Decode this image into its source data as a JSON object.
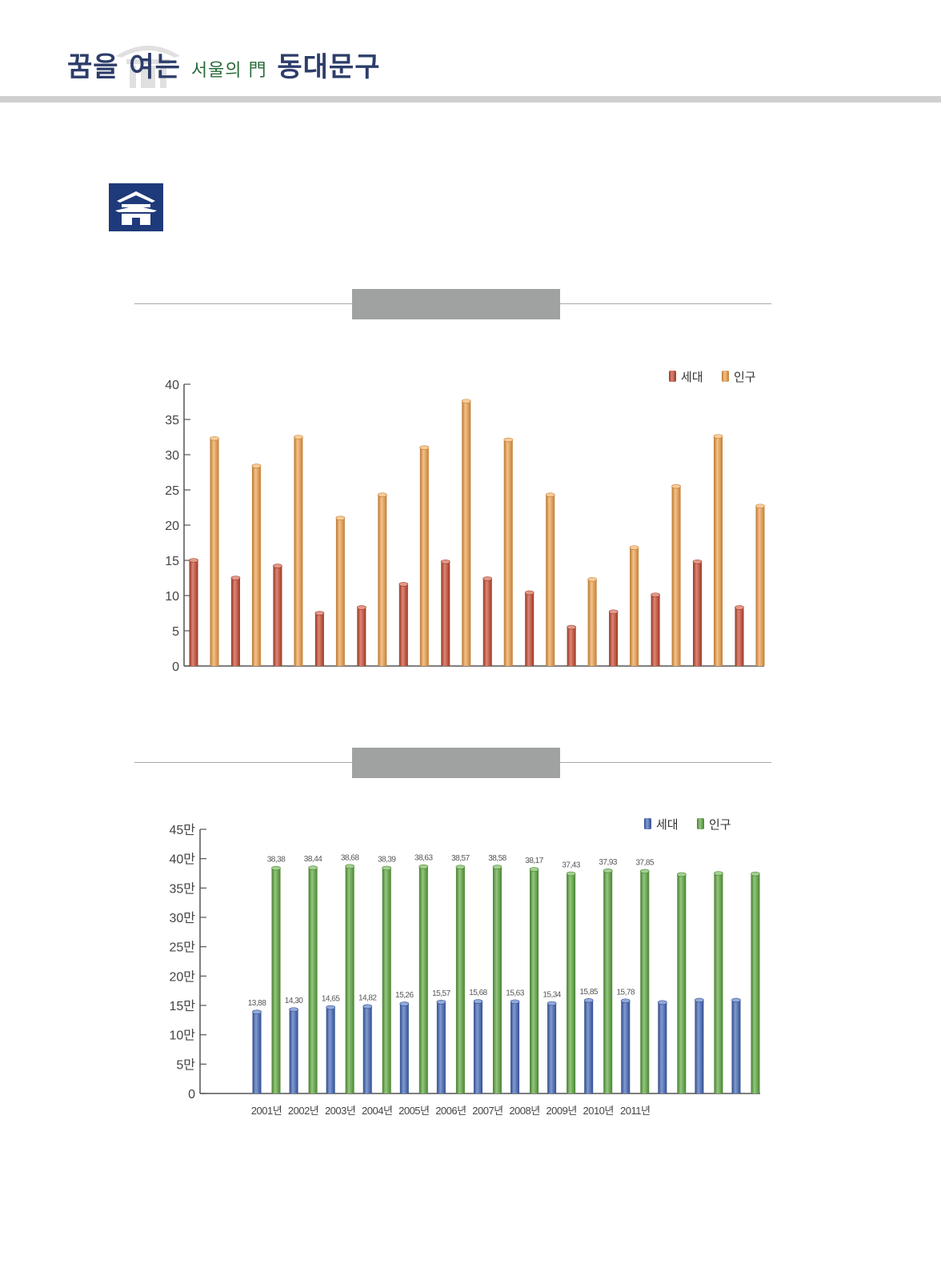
{
  "header": {
    "logo_part1": "꿈을 여는",
    "logo_part2": "서울의 門",
    "logo_part3": "동대문구"
  },
  "colors": {
    "header_bar": "#cfcfcf",
    "icon_bg": "#1f3a7a",
    "title_box": "#9fa2a1",
    "household_red": "#c9452b",
    "population_orange": "#f2a045",
    "household_blue": "#3d63b8",
    "population_green": "#5aa83a"
  },
  "icons": {
    "section_icon": "building-icon"
  },
  "chart_data": [
    {
      "type": "bar",
      "title": "",
      "xlabel": "",
      "ylabel": "",
      "ylim": [
        0,
        40
      ],
      "yticks": [
        "0",
        "5",
        "10",
        "15",
        "20",
        "25",
        "30",
        "35",
        "40"
      ],
      "legend_position": "top-right",
      "categories": [
        "",
        "",
        "",
        "",
        "",
        "",
        "",
        "",
        "",
        "",
        "",
        "",
        "",
        ""
      ],
      "series": [
        {
          "name": "세대",
          "color": "#c9452b",
          "values": [
            15.0,
            12.5,
            14.2,
            7.5,
            8.3,
            11.6,
            14.8,
            12.4,
            10.4,
            5.5,
            7.7,
            10.1,
            14.8,
            8.3
          ]
        },
        {
          "name": "인구",
          "color": "#f2a045",
          "values": [
            32.3,
            28.4,
            32.5,
            21.0,
            24.3,
            31.0,
            37.6,
            32.1,
            24.3,
            12.3,
            16.8,
            25.5,
            32.6,
            22.7
          ]
        }
      ]
    },
    {
      "type": "bar",
      "title": "",
      "xlabel": "",
      "ylabel": "",
      "ylim": [
        0,
        45
      ],
      "yticks": [
        "0",
        "5만",
        "10만",
        "15만",
        "20만",
        "25만",
        "30만",
        "35만",
        "40만",
        "45만"
      ],
      "legend_position": "top-right",
      "categories": [
        "2001년",
        "2002년",
        "2003년",
        "2004년",
        "2005년",
        "2006년",
        "2007년",
        "2008년",
        "2009년",
        "2010년",
        "2011년",
        "",
        "",
        ""
      ],
      "series": [
        {
          "name": "세대",
          "color": "#3d63b8",
          "values": [
            13.88,
            14.3,
            14.65,
            14.82,
            15.26,
            15.57,
            15.68,
            15.63,
            15.34,
            15.85,
            15.78,
            15.5,
            15.9,
            15.9
          ],
          "labels": [
            "13,88",
            "14,30",
            "14,65",
            "14,82",
            "15,26",
            "15,57",
            "15,68",
            "15,63",
            "15,34",
            "15,85",
            "15,78",
            "",
            "",
            ""
          ]
        },
        {
          "name": "인구",
          "color": "#5aa83a",
          "values": [
            38.38,
            38.44,
            38.68,
            38.39,
            38.63,
            38.57,
            38.58,
            38.17,
            37.43,
            37.93,
            37.85,
            37.3,
            37.5,
            37.4
          ],
          "labels": [
            "38,38",
            "38,44",
            "38,68",
            "38,39",
            "38,63",
            "38,57",
            "38,58",
            "38,17",
            "37,43",
            "37,93",
            "37,85",
            "",
            "",
            ""
          ]
        }
      ]
    }
  ]
}
